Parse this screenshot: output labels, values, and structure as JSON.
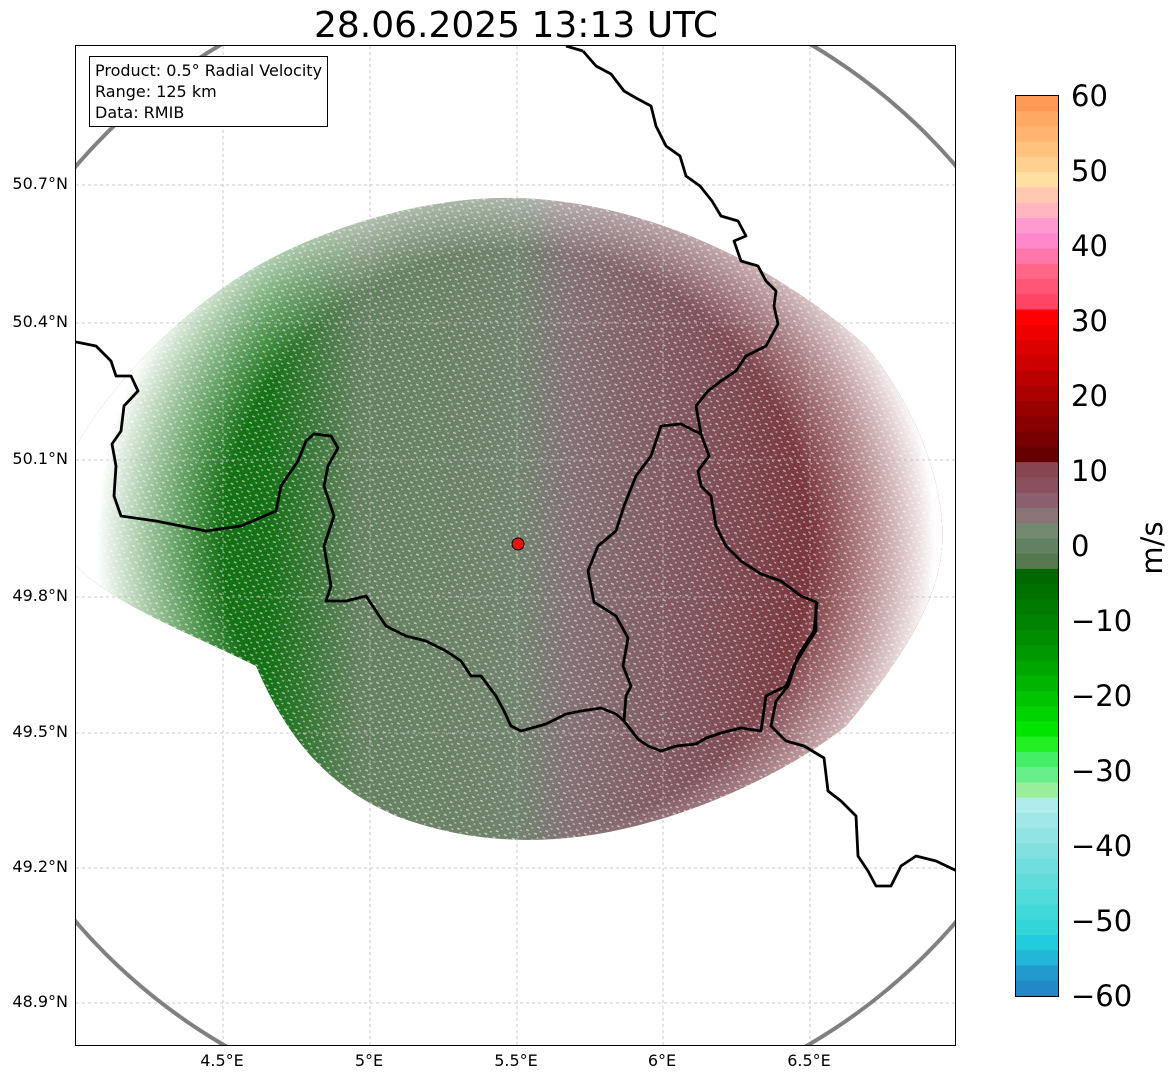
{
  "title": "28.06.2025 13:13 UTC",
  "info_box": {
    "product": "Product: 0.5° Radial Velocity",
    "range": "Range: 125 km",
    "source": "Data: RMIB"
  },
  "axes": {
    "lat_labels": [
      "50.7°N",
      "50.4°N",
      "50.1°N",
      "49.8°N",
      "49.5°N",
      "49.2°N",
      "48.9°N"
    ],
    "lon_labels": [
      "4.5°E",
      "5°E",
      "5.5°E",
      "6°E",
      "6.5°E"
    ]
  },
  "colorbar": {
    "unit": "m/s",
    "min": -60,
    "max": 60,
    "tick_labels": [
      "60",
      "50",
      "40",
      "30",
      "20",
      "10",
      "0",
      "−10",
      "−20",
      "−30",
      "−40",
      "−50",
      "−60"
    ],
    "colors_top_to_bottom": [
      "#ff9955",
      "#ffa763",
      "#ffb570",
      "#ffc27d",
      "#ffd08f",
      "#ffe0a0",
      "#ffc7b0",
      "#ffb5c0",
      "#ff9ad0",
      "#ff88cc",
      "#ff77aa",
      "#ff6688",
      "#ff5577",
      "#ff4466",
      "#ff0000",
      "#ee0000",
      "#dd0000",
      "#cc0000",
      "#bb0000",
      "#aa0000",
      "#990000",
      "#880000",
      "#770000",
      "#660000",
      "#884450",
      "#8a5060",
      "#8a6070",
      "#8a7478",
      "#748a70",
      "#628160",
      "#55784f",
      "#006600",
      "#007000",
      "#007a00",
      "#008400",
      "#008e00",
      "#009800",
      "#00a600",
      "#00b400",
      "#00c400",
      "#00d400",
      "#00e400",
      "#22f022",
      "#44ee66",
      "#66ee88",
      "#99ee99",
      "#b0ecec",
      "#a0e8e8",
      "#90e4e4",
      "#80e0e0",
      "#70dede",
      "#60dcdc",
      "#50dada",
      "#40d8d8",
      "#30d6d8",
      "#22ccdd",
      "#22b5d5",
      "#2299cc",
      "#2288c8"
    ]
  },
  "radar": {
    "center_lon_lat": [
      5.5,
      49.914
    ],
    "range_km": 125,
    "site_marker_color": "#ee1111"
  }
}
